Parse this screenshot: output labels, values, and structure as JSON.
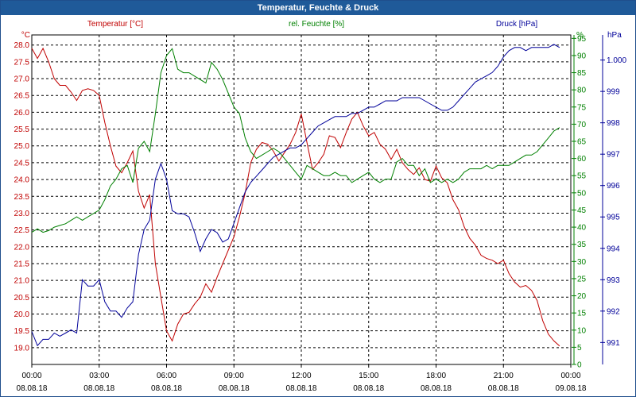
{
  "window": {
    "title": "Temperatur, Feuchte & Druck"
  },
  "chart_data": {
    "type": "line",
    "grid": true,
    "x_ticks": [
      {
        "time": "00:00",
        "date": "08.08.18"
      },
      {
        "time": "03:00",
        "date": "08.08.18"
      },
      {
        "time": "06:00",
        "date": "08.08.18"
      },
      {
        "time": "09:00",
        "date": "08.08.18"
      },
      {
        "time": "12:00",
        "date": "08.08.18"
      },
      {
        "time": "15:00",
        "date": "08.08.18"
      },
      {
        "time": "18:00",
        "date": "08.08.18"
      },
      {
        "time": "21:00",
        "date": "08.08.18"
      },
      {
        "time": "00:00",
        "date": "09.08.18"
      }
    ],
    "xlim": [
      0,
      24
    ],
    "axes": {
      "temperature": {
        "label": "Temperatur [°C]",
        "unit": "°C",
        "color": "#c00000",
        "ylim": [
          18.5,
          28.3
        ],
        "ticks": [
          "28.0",
          "27.5",
          "27.0",
          "26.5",
          "26.0",
          "25.5",
          "25.0",
          "24.5",
          "24.0",
          "23.5",
          "23.0",
          "22.5",
          "22.0",
          "21.5",
          "21.0",
          "20.5",
          "20.0",
          "19.5",
          "19.0"
        ]
      },
      "humidity": {
        "label": "rel. Feuchte [%]",
        "unit": "%",
        "color": "#008000",
        "ylim": [
          0,
          96
        ],
        "ticks": [
          "95",
          "90",
          "85",
          "80",
          "75",
          "70",
          "65",
          "60",
          "55",
          "50",
          "45",
          "40",
          "35",
          "30",
          "25",
          "20",
          "15",
          "10",
          "5",
          "0"
        ]
      },
      "pressure": {
        "label": "Druck [hPa]",
        "unit": "hPa",
        "color": "#000099",
        "ylim": [
          990.3,
          1000.8
        ],
        "ticks": [
          "1.000",
          "999",
          "998",
          "997",
          "996",
          "995",
          "994",
          "993",
          "992",
          "991"
        ]
      }
    },
    "series": [
      {
        "name": "Temperatur [°C]",
        "color": "#c00000",
        "axis": "temperature",
        "points": [
          [
            0.0,
            27.9
          ],
          [
            0.25,
            27.6
          ],
          [
            0.5,
            27.9
          ],
          [
            0.75,
            27.5
          ],
          [
            1.0,
            27.0
          ],
          [
            1.25,
            26.8
          ],
          [
            1.5,
            26.8
          ],
          [
            1.75,
            26.6
          ],
          [
            2.0,
            26.35
          ],
          [
            2.25,
            26.65
          ],
          [
            2.5,
            26.7
          ],
          [
            2.75,
            26.65
          ],
          [
            3.0,
            26.5
          ],
          [
            3.25,
            25.7
          ],
          [
            3.5,
            25.0
          ],
          [
            3.75,
            24.4
          ],
          [
            4.0,
            24.2
          ],
          [
            4.25,
            24.5
          ],
          [
            4.5,
            24.85
          ],
          [
            4.75,
            23.65
          ],
          [
            5.0,
            23.15
          ],
          [
            5.25,
            23.55
          ],
          [
            5.5,
            21.5
          ],
          [
            5.75,
            20.5
          ],
          [
            6.0,
            19.5
          ],
          [
            6.25,
            19.2
          ],
          [
            6.5,
            19.7
          ],
          [
            6.75,
            20.0
          ],
          [
            7.0,
            20.05
          ],
          [
            7.25,
            20.3
          ],
          [
            7.5,
            20.5
          ],
          [
            7.75,
            20.9
          ],
          [
            8.0,
            20.65
          ],
          [
            8.25,
            21.1
          ],
          [
            8.5,
            21.5
          ],
          [
            8.75,
            21.9
          ],
          [
            9.0,
            22.3
          ],
          [
            9.25,
            22.9
          ],
          [
            9.5,
            23.6
          ],
          [
            9.75,
            24.5
          ],
          [
            10.0,
            24.9
          ],
          [
            10.25,
            25.1
          ],
          [
            10.5,
            25.05
          ],
          [
            10.75,
            24.85
          ],
          [
            11.0,
            24.55
          ],
          [
            11.25,
            24.8
          ],
          [
            11.5,
            25.05
          ],
          [
            11.75,
            25.4
          ],
          [
            12.0,
            25.95
          ],
          [
            12.25,
            25.1
          ],
          [
            12.5,
            24.3
          ],
          [
            12.75,
            24.5
          ],
          [
            13.0,
            24.75
          ],
          [
            13.25,
            25.3
          ],
          [
            13.5,
            25.25
          ],
          [
            13.75,
            24.95
          ],
          [
            14.0,
            25.4
          ],
          [
            14.25,
            25.8
          ],
          [
            14.5,
            26.0
          ],
          [
            14.75,
            25.6
          ],
          [
            15.0,
            25.3
          ],
          [
            15.25,
            25.4
          ],
          [
            15.5,
            25.05
          ],
          [
            15.75,
            24.9
          ],
          [
            16.0,
            24.6
          ],
          [
            16.25,
            24.9
          ],
          [
            16.5,
            24.5
          ],
          [
            16.75,
            24.3
          ],
          [
            17.0,
            24.15
          ],
          [
            17.25,
            24.35
          ],
          [
            17.5,
            24.0
          ],
          [
            17.75,
            23.95
          ],
          [
            18.0,
            24.4
          ],
          [
            18.25,
            24.05
          ],
          [
            18.5,
            23.9
          ],
          [
            18.75,
            23.4
          ],
          [
            19.0,
            23.1
          ],
          [
            19.25,
            22.6
          ],
          [
            19.5,
            22.25
          ],
          [
            19.75,
            22.05
          ],
          [
            20.0,
            21.75
          ],
          [
            20.25,
            21.65
          ],
          [
            20.5,
            21.6
          ],
          [
            20.75,
            21.5
          ],
          [
            21.0,
            21.6
          ],
          [
            21.25,
            21.2
          ],
          [
            21.5,
            20.95
          ],
          [
            21.75,
            20.8
          ],
          [
            22.0,
            20.85
          ],
          [
            22.25,
            20.7
          ],
          [
            22.5,
            20.4
          ],
          [
            22.75,
            19.8
          ],
          [
            23.0,
            19.4
          ],
          [
            23.25,
            19.2
          ],
          [
            23.5,
            19.05
          ]
        ]
      },
      {
        "name": "rel. Feuchte [%]",
        "color": "#008000",
        "axis": "humidity",
        "points": [
          [
            0.0,
            38.5
          ],
          [
            0.25,
            39.5
          ],
          [
            0.5,
            38.5
          ],
          [
            0.75,
            39.0
          ],
          [
            1.0,
            40.0
          ],
          [
            1.25,
            40.5
          ],
          [
            1.5,
            41.0
          ],
          [
            1.75,
            42.0
          ],
          [
            2.0,
            43.0
          ],
          [
            2.25,
            42.0
          ],
          [
            2.5,
            43.0
          ],
          [
            2.75,
            44.0
          ],
          [
            3.0,
            45.0
          ],
          [
            3.25,
            48.0
          ],
          [
            3.5,
            52.0
          ],
          [
            3.75,
            54.0
          ],
          [
            4.0,
            57.0
          ],
          [
            4.25,
            58.0
          ],
          [
            4.5,
            53.0
          ],
          [
            4.75,
            63.0
          ],
          [
            5.0,
            65.0
          ],
          [
            5.25,
            62.0
          ],
          [
            5.5,
            73.0
          ],
          [
            5.75,
            85.0
          ],
          [
            6.0,
            90.0
          ],
          [
            6.25,
            92.0
          ],
          [
            6.5,
            86.0
          ],
          [
            6.75,
            85.0
          ],
          [
            7.0,
            85.0
          ],
          [
            7.25,
            84.0
          ],
          [
            7.5,
            83.0
          ],
          [
            7.75,
            82.0
          ],
          [
            8.0,
            88.0
          ],
          [
            8.25,
            86.0
          ],
          [
            8.5,
            83.0
          ],
          [
            8.75,
            79.0
          ],
          [
            9.0,
            75.0
          ],
          [
            9.25,
            73.0
          ],
          [
            9.5,
            66.0
          ],
          [
            9.75,
            62.0
          ],
          [
            10.0,
            60.0
          ],
          [
            10.25,
            61.0
          ],
          [
            10.5,
            62.0
          ],
          [
            10.75,
            63.0
          ],
          [
            11.0,
            62.0
          ],
          [
            11.25,
            60.0
          ],
          [
            11.5,
            58.0
          ],
          [
            11.75,
            56.0
          ],
          [
            12.0,
            54.0
          ],
          [
            12.25,
            58.0
          ],
          [
            12.5,
            57.0
          ],
          [
            12.75,
            56.0
          ],
          [
            13.0,
            55.0
          ],
          [
            13.25,
            55.0
          ],
          [
            13.5,
            56.0
          ],
          [
            13.75,
            55.0
          ],
          [
            14.0,
            55.0
          ],
          [
            14.25,
            53.0
          ],
          [
            14.5,
            54.0
          ],
          [
            14.75,
            55.0
          ],
          [
            15.0,
            56.0
          ],
          [
            15.25,
            54.0
          ],
          [
            15.5,
            53.0
          ],
          [
            15.75,
            54.0
          ],
          [
            16.0,
            54.0
          ],
          [
            16.25,
            59.0
          ],
          [
            16.5,
            60.0
          ],
          [
            16.75,
            58.0
          ],
          [
            17.0,
            58.0
          ],
          [
            17.25,
            55.0
          ],
          [
            17.5,
            57.0
          ],
          [
            17.75,
            53.0
          ],
          [
            18.0,
            54.0
          ],
          [
            18.25,
            53.0
          ],
          [
            18.5,
            54.0
          ],
          [
            18.75,
            53.0
          ],
          [
            19.0,
            54.0
          ],
          [
            19.25,
            56.0
          ],
          [
            19.5,
            57.0
          ],
          [
            19.75,
            57.0
          ],
          [
            20.0,
            57.0
          ],
          [
            20.25,
            58.0
          ],
          [
            20.5,
            57.0
          ],
          [
            20.75,
            58.0
          ],
          [
            21.0,
            58.0
          ],
          [
            21.25,
            58.0
          ],
          [
            21.5,
            59.0
          ],
          [
            21.75,
            60.0
          ],
          [
            22.0,
            61.0
          ],
          [
            22.25,
            61.0
          ],
          [
            22.5,
            62.0
          ],
          [
            22.75,
            64.0
          ],
          [
            23.0,
            66.0
          ],
          [
            23.25,
            68.0
          ],
          [
            23.5,
            69.0
          ]
        ]
      },
      {
        "name": "Druck [hPa]",
        "color": "#000099",
        "axis": "pressure",
        "points": [
          [
            0.0,
            991.35
          ],
          [
            0.25,
            990.9
          ],
          [
            0.5,
            991.1
          ],
          [
            0.75,
            991.1
          ],
          [
            1.0,
            991.3
          ],
          [
            1.25,
            991.2
          ],
          [
            1.5,
            991.3
          ],
          [
            1.75,
            991.4
          ],
          [
            2.0,
            991.3
          ],
          [
            2.25,
            993.0
          ],
          [
            2.5,
            992.8
          ],
          [
            2.75,
            992.8
          ],
          [
            3.0,
            993.0
          ],
          [
            3.25,
            992.3
          ],
          [
            3.5,
            992.0
          ],
          [
            3.75,
            992.0
          ],
          [
            4.0,
            991.8
          ],
          [
            4.25,
            992.1
          ],
          [
            4.5,
            992.3
          ],
          [
            4.75,
            993.8
          ],
          [
            5.0,
            994.6
          ],
          [
            5.25,
            994.9
          ],
          [
            5.5,
            996.2
          ],
          [
            5.75,
            996.7
          ],
          [
            6.0,
            996.2
          ],
          [
            6.25,
            995.2
          ],
          [
            6.5,
            995.1
          ],
          [
            6.75,
            995.1
          ],
          [
            7.0,
            995.0
          ],
          [
            7.25,
            994.5
          ],
          [
            7.5,
            993.9
          ],
          [
            7.75,
            994.3
          ],
          [
            8.0,
            994.6
          ],
          [
            8.25,
            994.5
          ],
          [
            8.5,
            994.2
          ],
          [
            8.75,
            994.3
          ],
          [
            9.0,
            994.8
          ],
          [
            9.25,
            995.3
          ],
          [
            9.5,
            995.8
          ],
          [
            9.75,
            996.1
          ],
          [
            10.0,
            996.3
          ],
          [
            10.25,
            996.5
          ],
          [
            10.5,
            996.7
          ],
          [
            10.75,
            996.9
          ],
          [
            11.0,
            997.0
          ],
          [
            11.25,
            997.1
          ],
          [
            11.5,
            997.2
          ],
          [
            11.75,
            997.2
          ],
          [
            12.0,
            997.3
          ],
          [
            12.25,
            997.5
          ],
          [
            12.5,
            997.7
          ],
          [
            12.75,
            997.9
          ],
          [
            13.0,
            998.0
          ],
          [
            13.25,
            998.1
          ],
          [
            13.5,
            998.2
          ],
          [
            13.75,
            998.2
          ],
          [
            14.0,
            998.2
          ],
          [
            14.25,
            998.3
          ],
          [
            14.5,
            998.3
          ],
          [
            14.75,
            998.4
          ],
          [
            15.0,
            998.5
          ],
          [
            15.25,
            998.5
          ],
          [
            15.5,
            998.6
          ],
          [
            15.75,
            998.7
          ],
          [
            16.0,
            998.7
          ],
          [
            16.25,
            998.7
          ],
          [
            16.5,
            998.8
          ],
          [
            16.75,
            998.8
          ],
          [
            17.0,
            998.8
          ],
          [
            17.25,
            998.8
          ],
          [
            17.5,
            998.7
          ],
          [
            17.75,
            998.6
          ],
          [
            18.0,
            998.5
          ],
          [
            18.25,
            998.4
          ],
          [
            18.5,
            998.4
          ],
          [
            18.75,
            998.5
          ],
          [
            19.0,
            998.7
          ],
          [
            19.25,
            998.9
          ],
          [
            19.5,
            999.1
          ],
          [
            19.75,
            999.3
          ],
          [
            20.0,
            999.4
          ],
          [
            20.25,
            999.5
          ],
          [
            20.5,
            999.6
          ],
          [
            20.75,
            999.8
          ],
          [
            21.0,
            1000.1
          ],
          [
            21.25,
            1000.3
          ],
          [
            21.5,
            1000.4
          ],
          [
            21.75,
            1000.4
          ],
          [
            22.0,
            1000.3
          ],
          [
            22.25,
            1000.4
          ],
          [
            22.5,
            1000.4
          ],
          [
            22.75,
            1000.4
          ],
          [
            23.0,
            1000.4
          ],
          [
            23.25,
            1000.5
          ],
          [
            23.5,
            1000.4
          ]
        ]
      }
    ]
  }
}
